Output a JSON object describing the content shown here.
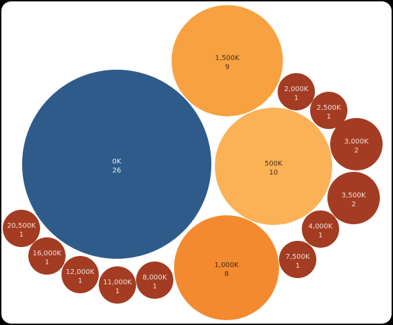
{
  "chart_data": {
    "type": "packed-bubble",
    "title": "",
    "bubbles": [
      {
        "label": "0K",
        "count": 26,
        "color": "#2e5b8a",
        "text_color": "#e8eef5"
      },
      {
        "label": "1,500K",
        "count": 9,
        "color": "#f7a141",
        "text_color": "#4a3218"
      },
      {
        "label": "500K",
        "count": 10,
        "color": "#fbb256",
        "text_color": "#4a3218"
      },
      {
        "label": "1,000K",
        "count": 8,
        "color": "#f38a2f",
        "text_color": "#4a2a10"
      },
      {
        "label": "2,000K",
        "count": 1,
        "color": "#a33c23",
        "text_color": "#f3ddd6"
      },
      {
        "label": "2,500K",
        "count": 1,
        "color": "#a33c23",
        "text_color": "#f3ddd6"
      },
      {
        "label": "3,000K",
        "count": 2,
        "color": "#a33c23",
        "text_color": "#f3ddd6"
      },
      {
        "label": "3,500K",
        "count": 2,
        "color": "#a33c23",
        "text_color": "#f3ddd6"
      },
      {
        "label": "4,000K",
        "count": 1,
        "color": "#a33c23",
        "text_color": "#f3ddd6"
      },
      {
        "label": "7,500K",
        "count": 1,
        "color": "#a33c23",
        "text_color": "#f3ddd6"
      },
      {
        "label": "8,000K",
        "count": 1,
        "color": "#a33c23",
        "text_color": "#f3ddd6"
      },
      {
        "label": "11,000K",
        "count": 1,
        "color": "#a33c23",
        "text_color": "#f3ddd6"
      },
      {
        "label": "12,000K",
        "count": 1,
        "color": "#a33c23",
        "text_color": "#f3ddd6"
      },
      {
        "label": "16,000K",
        "count": 1,
        "color": "#a33c23",
        "text_color": "#f3ddd6"
      },
      {
        "label": "20,500K",
        "count": 1,
        "color": "#a33c23",
        "text_color": "#f3ddd6"
      }
    ]
  }
}
